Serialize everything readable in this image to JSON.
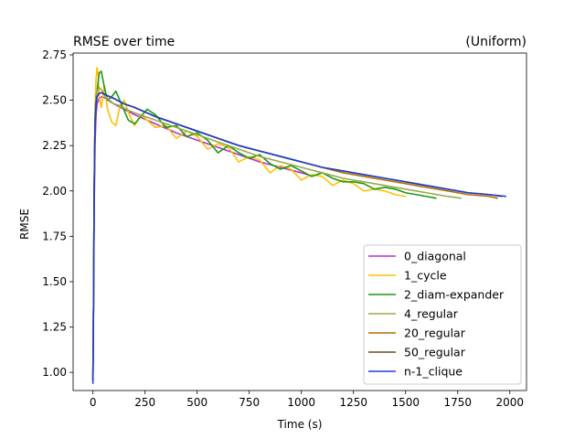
{
  "chart_data": {
    "type": "line",
    "title": "RMSE over time",
    "subtitle": "(Uniform)",
    "xlabel": "Time (s)",
    "ylabel": "RMSE",
    "xlim": [
      -95,
      2080
    ],
    "ylim": [
      0.9,
      2.76
    ],
    "x_ticks": [
      0,
      250,
      500,
      750,
      1000,
      1250,
      1500,
      1750,
      2000
    ],
    "y_ticks": [
      1.0,
      1.25,
      1.5,
      1.75,
      2.0,
      2.25,
      2.5,
      2.75
    ],
    "x_tick_labels": [
      "0",
      "250",
      "500",
      "750",
      "1000",
      "1250",
      "1500",
      "1750",
      "2000"
    ],
    "y_tick_labels": [
      "1.00",
      "1.25",
      "1.50",
      "1.75",
      "2.00",
      "2.25",
      "2.50",
      "2.75"
    ],
    "grid": false,
    "legend_position": "lower-right",
    "series": [
      {
        "name": "0_diagonal",
        "color": "#b530d6",
        "x": [
          0,
          3,
          6,
          10,
          15,
          20,
          30,
          45,
          60,
          100,
          150,
          200,
          300,
          400,
          500,
          600,
          700,
          800,
          900,
          1000,
          1030
        ],
        "y": [
          0.96,
          1.4,
          1.9,
          2.25,
          2.42,
          2.48,
          2.51,
          2.52,
          2.51,
          2.48,
          2.45,
          2.42,
          2.37,
          2.32,
          2.28,
          2.24,
          2.2,
          2.16,
          2.13,
          2.1,
          2.09
        ]
      },
      {
        "name": "1_cycle",
        "color": "#ffc000",
        "x": [
          0,
          3,
          6,
          10,
          15,
          20,
          25,
          30,
          40,
          55,
          70,
          90,
          110,
          130,
          150,
          175,
          200,
          230,
          260,
          300,
          350,
          400,
          450,
          500,
          550,
          600,
          650,
          700,
          750,
          800,
          850,
          900,
          950,
          1000,
          1050,
          1100,
          1150,
          1200,
          1250,
          1300,
          1350,
          1400,
          1450,
          1500
        ],
        "y": [
          0.96,
          1.4,
          2.0,
          2.45,
          2.62,
          2.68,
          2.64,
          2.52,
          2.46,
          2.58,
          2.45,
          2.38,
          2.36,
          2.47,
          2.5,
          2.42,
          2.36,
          2.42,
          2.39,
          2.35,
          2.36,
          2.29,
          2.33,
          2.3,
          2.23,
          2.26,
          2.24,
          2.16,
          2.19,
          2.17,
          2.1,
          2.14,
          2.12,
          2.06,
          2.09,
          2.08,
          2.03,
          2.06,
          2.04,
          2.0,
          2.01,
          2.0,
          1.98,
          1.97
        ]
      },
      {
        "name": "2_diam-expander",
        "color": "#1a9a16",
        "x": [
          0,
          3,
          6,
          10,
          15,
          20,
          30,
          40,
          55,
          70,
          90,
          110,
          140,
          170,
          200,
          230,
          260,
          300,
          350,
          400,
          450,
          500,
          550,
          600,
          650,
          700,
          750,
          800,
          850,
          900,
          950,
          1000,
          1050,
          1100,
          1150,
          1200,
          1250,
          1300,
          1350,
          1400,
          1450,
          1500,
          1550,
          1600,
          1645
        ],
        "y": [
          0.96,
          1.4,
          2.0,
          2.4,
          2.52,
          2.55,
          2.65,
          2.66,
          2.57,
          2.5,
          2.52,
          2.55,
          2.47,
          2.39,
          2.37,
          2.41,
          2.45,
          2.42,
          2.35,
          2.36,
          2.3,
          2.32,
          2.28,
          2.21,
          2.25,
          2.21,
          2.18,
          2.2,
          2.15,
          2.12,
          2.14,
          2.11,
          2.08,
          2.1,
          2.07,
          2.05,
          2.05,
          2.04,
          2.01,
          2.02,
          2.01,
          1.99,
          1.98,
          1.97,
          1.96
        ]
      },
      {
        "name": "4_regular",
        "color": "#9aa94c",
        "x": [
          0,
          3,
          6,
          10,
          15,
          20,
          30,
          45,
          60,
          80,
          100,
          130,
          160,
          200,
          250,
          300,
          350,
          400,
          450,
          500,
          600,
          700,
          800,
          900,
          1000,
          1100,
          1200,
          1300,
          1400,
          1500,
          1600,
          1700,
          1765
        ],
        "y": [
          0.96,
          1.4,
          2.0,
          2.35,
          2.5,
          2.55,
          2.57,
          2.55,
          2.52,
          2.5,
          2.48,
          2.47,
          2.45,
          2.43,
          2.41,
          2.39,
          2.37,
          2.35,
          2.33,
          2.31,
          2.27,
          2.23,
          2.19,
          2.16,
          2.13,
          2.1,
          2.07,
          2.05,
          2.03,
          2.01,
          1.99,
          1.97,
          1.96
        ]
      },
      {
        "name": "20_regular",
        "color": "#b86e00",
        "x": [
          0,
          3,
          6,
          10,
          15,
          20,
          30,
          45,
          60,
          80,
          100,
          150,
          200,
          300,
          400,
          500,
          600,
          700,
          800,
          900,
          1000,
          1100,
          1200,
          1300,
          1400,
          1500,
          1600,
          1700,
          1800,
          1900,
          1940
        ],
        "y": [
          0.96,
          1.4,
          2.0,
          2.35,
          2.48,
          2.52,
          2.54,
          2.54,
          2.53,
          2.52,
          2.51,
          2.48,
          2.46,
          2.41,
          2.37,
          2.33,
          2.29,
          2.25,
          2.22,
          2.19,
          2.16,
          2.13,
          2.1,
          2.08,
          2.06,
          2.04,
          2.02,
          2.0,
          1.98,
          1.97,
          1.96
        ]
      },
      {
        "name": "50_regular",
        "color": "#6b4a2b",
        "x": [
          0,
          3,
          6,
          10,
          15,
          20,
          30,
          45,
          60,
          80,
          100,
          150,
          200,
          300,
          400,
          500,
          600,
          700,
          800,
          900,
          1000,
          1100,
          1200,
          1300,
          1400,
          1500,
          1600,
          1700,
          1800,
          1900,
          1960
        ],
        "y": [
          0.96,
          1.4,
          2.0,
          2.35,
          2.48,
          2.52,
          2.54,
          2.54,
          2.53,
          2.52,
          2.51,
          2.48,
          2.46,
          2.41,
          2.37,
          2.33,
          2.29,
          2.25,
          2.22,
          2.19,
          2.16,
          2.13,
          2.11,
          2.09,
          2.07,
          2.05,
          2.03,
          2.01,
          1.99,
          1.98,
          1.97
        ]
      },
      {
        "name": "n-1_clique",
        "color": "#1f3fcb",
        "x": [
          0,
          3,
          6,
          10,
          15,
          20,
          30,
          45,
          60,
          80,
          100,
          150,
          200,
          300,
          400,
          500,
          600,
          700,
          800,
          900,
          1000,
          1100,
          1200,
          1300,
          1400,
          1500,
          1600,
          1700,
          1800,
          1900,
          1980
        ],
        "y": [
          0.94,
          1.4,
          2.0,
          2.35,
          2.48,
          2.52,
          2.54,
          2.54,
          2.53,
          2.52,
          2.51,
          2.48,
          2.46,
          2.41,
          2.37,
          2.33,
          2.29,
          2.25,
          2.22,
          2.19,
          2.16,
          2.13,
          2.11,
          2.09,
          2.07,
          2.05,
          2.03,
          2.01,
          1.99,
          1.98,
          1.97
        ]
      }
    ]
  }
}
